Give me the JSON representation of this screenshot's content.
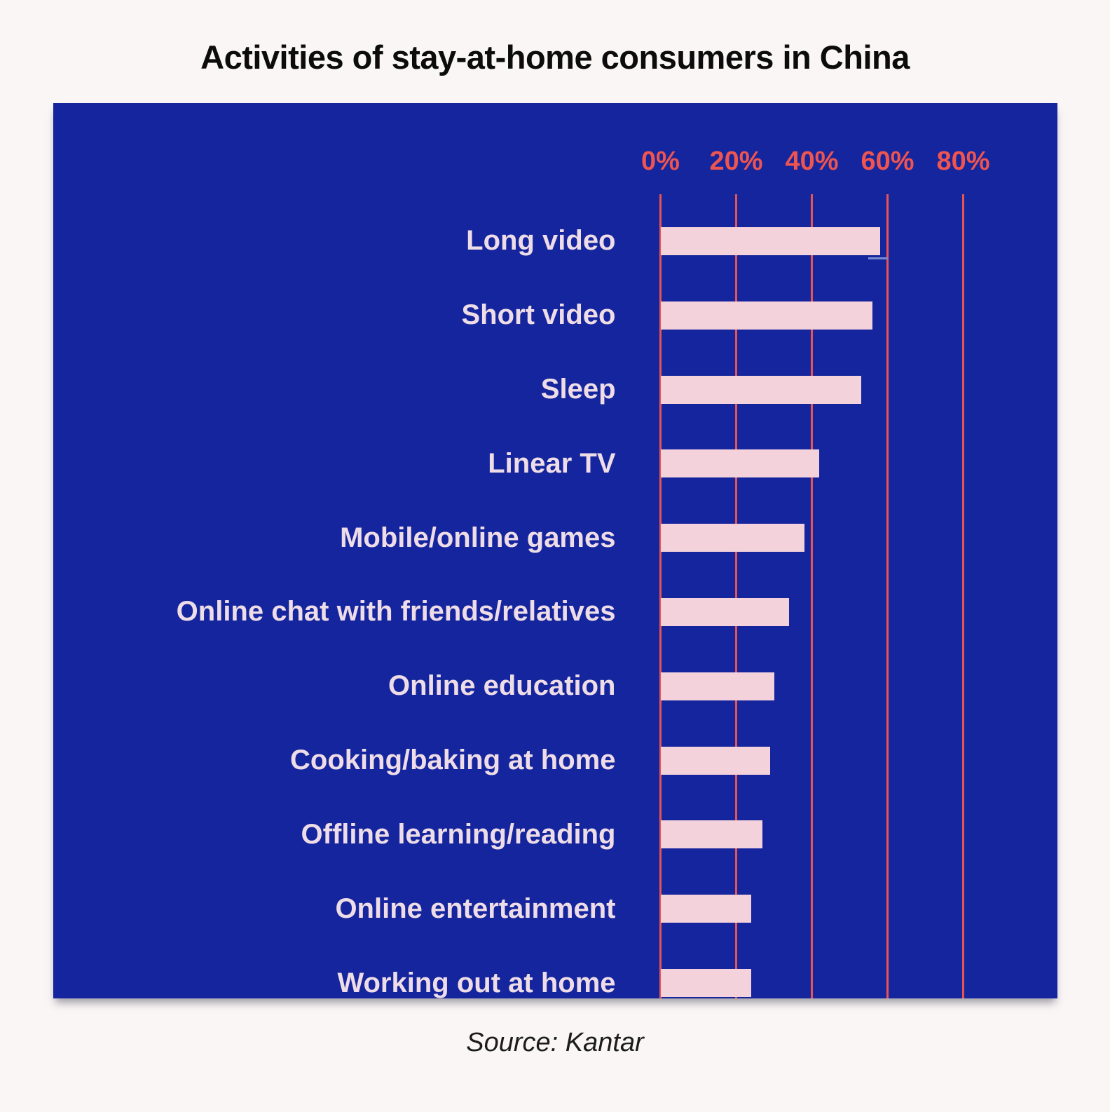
{
  "title": "Activities of stay-at-home consumers in China",
  "source_caption": "Source: Kantar",
  "colors": {
    "page_background": "#faf6f6",
    "panel_background": "#14259d",
    "bar_fill": "#f4d2dc",
    "axis_and_grid": "#ee5450",
    "category_label": "#eedce6",
    "title_text": "#0c0c0c",
    "source_text": "#1c1c1c"
  },
  "chart_data": {
    "type": "bar",
    "orientation": "horizontal",
    "title": "Activities of stay-at-home consumers in China",
    "categories": [
      "Long video",
      "Short video",
      "Sleep",
      "Linear TV",
      "Mobile/online games",
      "Online chat with friends/relatives",
      "Online education",
      "Cooking/baking at home",
      "Offline learning/reading",
      "Online entertainment",
      "Working out at home"
    ],
    "values": [
      58,
      56,
      53,
      42,
      38,
      34,
      30,
      29,
      27,
      24,
      24
    ],
    "unit": "%",
    "x_ticks": [
      "0%",
      "20%",
      "40%",
      "60%",
      "80%"
    ],
    "x_tick_values": [
      0,
      20,
      40,
      60,
      80
    ],
    "xlim": [
      0,
      104
    ],
    "grid": "vertical-lines",
    "legend": "none",
    "source": "Kantar"
  }
}
